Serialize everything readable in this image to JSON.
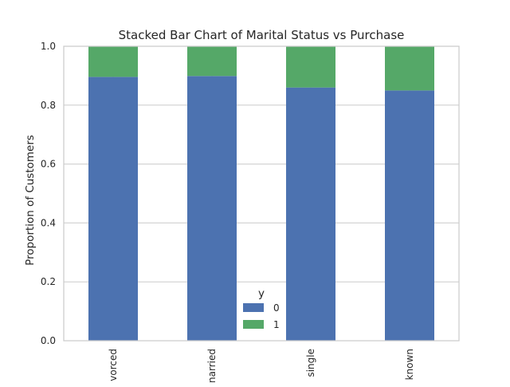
{
  "chart_data": {
    "type": "bar",
    "stacked": true,
    "title": "Stacked Bar Chart of Marital Status vs Purchase",
    "xlabel": "",
    "ylabel": "Proportion of Customers",
    "categories": [
      "vorced",
      "narried",
      "single",
      "known"
    ],
    "series": [
      {
        "name": "0",
        "values": [
          0.896,
          0.899,
          0.86,
          0.85
        ],
        "color": "#4c72b0"
      },
      {
        "name": "1",
        "values": [
          0.104,
          0.101,
          0.14,
          0.15
        ],
        "color": "#55a868"
      }
    ],
    "ylim": [
      0,
      1.0
    ],
    "yticks": [
      "0.0",
      "0.2",
      "0.4",
      "0.6",
      "0.8",
      "1.0"
    ],
    "grid": true,
    "legend": {
      "title": "y",
      "placement": "lower-center"
    },
    "colors": {
      "grid": "#cccccc",
      "axes_edge": "#cccccc",
      "background": "#ffffff"
    }
  }
}
